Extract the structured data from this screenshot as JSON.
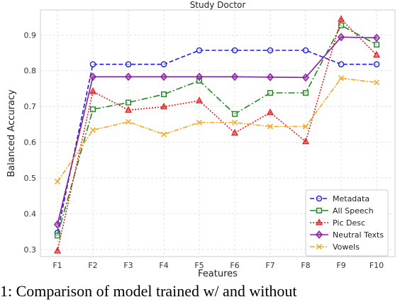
{
  "chart_data": {
    "type": "line",
    "title": "Study Doctor",
    "xlabel": "Features",
    "ylabel": "Balanced Accuracy",
    "categories": [
      "F1",
      "F2",
      "F3",
      "F4",
      "F5",
      "F6",
      "F7",
      "F8",
      "F9",
      "F10"
    ],
    "ylim": [
      0.28,
      0.97
    ],
    "yticks": [
      "0.3",
      "0.4",
      "0.5",
      "0.6",
      "0.7",
      "0.8",
      "0.9"
    ],
    "grid": true,
    "legend_position": "bottom-right",
    "series": [
      {
        "name": "Metadata",
        "color": "#1f1fd6",
        "dash": "6,3",
        "marker": "circle",
        "values": [
          0.347,
          0.818,
          0.818,
          0.818,
          0.857,
          0.857,
          0.857,
          0.857,
          0.818,
          0.818
        ]
      },
      {
        "name": "All Speech",
        "color": "#1e8a1e",
        "dash": "9,3,2,3",
        "marker": "square",
        "values": [
          0.339,
          0.692,
          0.711,
          0.734,
          0.772,
          0.679,
          0.738,
          0.738,
          0.927,
          0.873
        ]
      },
      {
        "name": "Pic Desc",
        "color": "#e31a1c",
        "dash": "2,2",
        "marker": "triangle",
        "values": [
          0.296,
          0.742,
          0.69,
          0.699,
          0.716,
          0.626,
          0.683,
          0.602,
          0.944,
          0.844
        ]
      },
      {
        "name": "Neutral Texts",
        "color": "#8b1fa0",
        "dash": "",
        "marker": "diamond",
        "values": [
          0.37,
          0.783,
          0.783,
          0.783,
          0.783,
          0.783,
          0.782,
          0.781,
          0.894,
          0.892
        ]
      },
      {
        "name": "Vowels",
        "color": "#f5a623",
        "dash": "7,2,2,2",
        "marker": "x",
        "values": [
          0.49,
          0.634,
          0.657,
          0.622,
          0.655,
          0.655,
          0.644,
          0.644,
          0.779,
          0.767
        ]
      }
    ]
  },
  "caption": "1: Comparison of model trained w/ and without"
}
